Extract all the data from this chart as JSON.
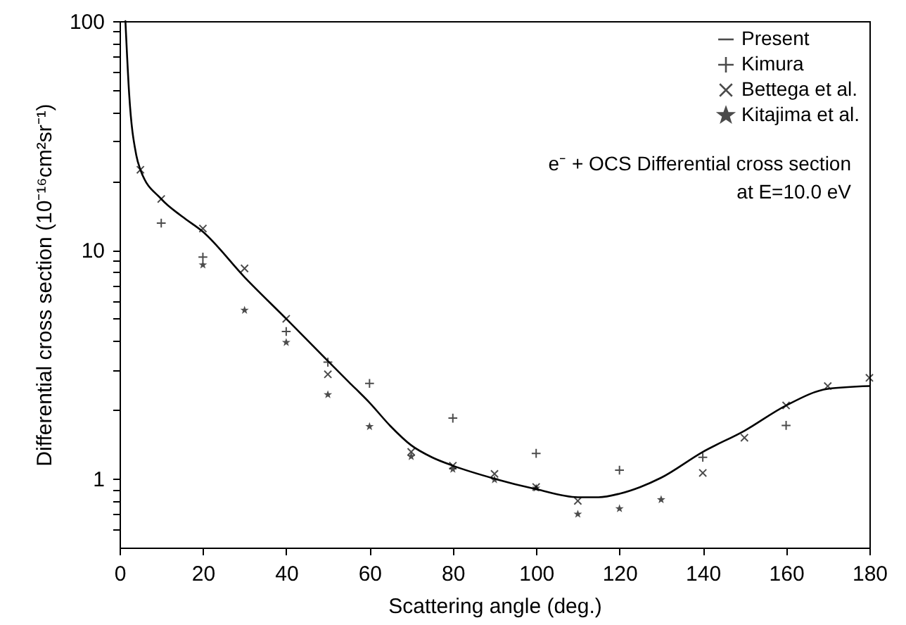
{
  "chart_data": {
    "type": "line",
    "xlabel": "Scattering angle (deg.)",
    "ylabel": "Differential cross section (10⁻¹⁶cm²sr⁻¹)",
    "xlim": [
      0,
      180
    ],
    "xticks": [
      0,
      20,
      40,
      60,
      80,
      100,
      120,
      140,
      160,
      180
    ],
    "ylim": [
      0.5,
      100
    ],
    "yticks": [
      {
        "value": 0.6,
        "label": null
      },
      {
        "value": 0.7,
        "label": null
      },
      {
        "value": 0.8,
        "label": null
      },
      {
        "value": 0.9,
        "label": null
      },
      1,
      {
        "value": 2,
        "label": null
      },
      {
        "value": 3,
        "label": null
      },
      {
        "value": 4,
        "label": null
      },
      {
        "value": 5,
        "label": null
      },
      {
        "value": 6,
        "label": null
      },
      {
        "value": 7,
        "label": null
      },
      {
        "value": 8,
        "label": null
      },
      {
        "value": 9,
        "label": null
      },
      10,
      {
        "value": 20,
        "label": null
      },
      {
        "value": 30,
        "label": null
      },
      {
        "value": 40,
        "label": null
      },
      {
        "value": 50,
        "label": null
      },
      {
        "value": 60,
        "label": null
      },
      {
        "value": 70,
        "label": null
      },
      {
        "value": 80,
        "label": null
      },
      {
        "value": 90,
        "label": null
      },
      100
    ],
    "log": true,
    "grid": false,
    "legend": "top right",
    "annotations": [
      "e⁻ + OCS Differential cross section",
      "at E=10.0 eV"
    ],
    "series": [
      {
        "name": "Present",
        "type": "line",
        "color": "#000000",
        "line_style": "solid",
        "marker": "none",
        "x": [
          1.4,
          2.3,
          4,
          5,
          10,
          15,
          20,
          30,
          40,
          50,
          55,
          60,
          65,
          70,
          75,
          80,
          90,
          100,
          110,
          115,
          120,
          125,
          130,
          140,
          150,
          160,
          170,
          180
        ],
        "values": [
          100,
          48,
          26,
          22.4,
          16.7,
          14,
          12,
          7.6,
          5,
          3.27,
          2.65,
          2.15,
          1.7,
          1.4,
          1.24,
          1.14,
          1,
          0.9,
          0.83,
          0.83,
          0.86,
          0.92,
          1.01,
          1.31,
          1.62,
          2.09,
          2.47,
          2.54
        ]
      },
      {
        "name": "Kimura",
        "type": "scatter",
        "color": "#000000",
        "marker": "cross",
        "x": [
          10,
          20,
          40,
          50,
          60,
          80,
          100,
          120,
          140,
          160
        ],
        "values": [
          13.1,
          9.3,
          4.4,
          3.23,
          2.61,
          1.84,
          1.29,
          1.09,
          1.24,
          1.71
        ]
      },
      {
        "name": "Bettega et al.",
        "type": "scatter",
        "color": "#000000",
        "marker": "x",
        "x": [
          5,
          10,
          20,
          30,
          40,
          50,
          70,
          80,
          90,
          100,
          110,
          140,
          150,
          160,
          170,
          180
        ],
        "values": [
          22.4,
          16.7,
          12.4,
          8.3,
          5,
          2.86,
          1.31,
          1.14,
          1.05,
          0.92,
          0.8,
          1.06,
          1.51,
          2.09,
          2.54,
          2.76
        ]
      },
      {
        "name": "Kitajima et al.",
        "type": "scatter",
        "color": "#000000",
        "marker": "star",
        "x": [
          20,
          30,
          40,
          50,
          60,
          70,
          80,
          90,
          100,
          110,
          120,
          130
        ],
        "values": [
          8.6,
          5.45,
          3.94,
          2.33,
          1.69,
          1.25,
          1.1,
          0.99,
          0.91,
          0.7,
          0.74,
          0.81
        ]
      }
    ]
  }
}
